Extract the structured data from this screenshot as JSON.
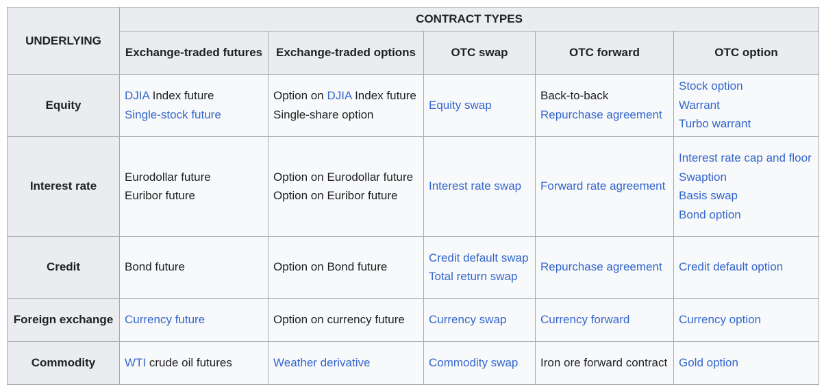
{
  "header": {
    "underlying": "UNDERLYING",
    "contract_types": "CONTRACT TYPES",
    "columns": [
      "Exchange-traded futures",
      "Exchange-traded options",
      "OTC swap",
      "OTC forward",
      "OTC option"
    ]
  },
  "rows": {
    "equity": {
      "label": "Equity",
      "futures": {
        "l1_link": "DJIA",
        "l1_text": " Index future",
        "l2_link": "Single-stock future"
      },
      "options": {
        "l1_text": "Option on ",
        "l1_link": "DJIA",
        "l1_text2": " Index future",
        "l2_text": "Single-share option"
      },
      "swap": {
        "link": "Equity swap"
      },
      "forward": {
        "l1_text": "Back-to-back",
        "l2_link": "Repurchase agreement"
      },
      "option": {
        "l1_link": "Stock option",
        "l2_link": "Warrant",
        "l3_link": "Turbo warrant"
      }
    },
    "interest_rate": {
      "label": "Interest rate",
      "futures": {
        "l1_text": "Eurodollar future",
        "l2_text": "Euribor future"
      },
      "options": {
        "l1_text": "Option on Eurodollar future",
        "l2_text": "Option on Euribor future"
      },
      "swap": {
        "link": "Interest rate swap"
      },
      "forward": {
        "link": "Forward rate agreement"
      },
      "option": {
        "l1_link": "Interest rate cap and floor",
        "l2_link": "Swaption",
        "l3_link": "Basis swap",
        "l4_link": "Bond option"
      }
    },
    "credit": {
      "label": "Credit",
      "futures": {
        "text": "Bond future"
      },
      "options": {
        "text": "Option on Bond future"
      },
      "swap": {
        "l1_link": "Credit default swap",
        "l2_link": "Total return swap"
      },
      "forward": {
        "link": "Repurchase agreement"
      },
      "option": {
        "link": "Credit default option"
      }
    },
    "foreign_exchange": {
      "label": "Foreign exchange",
      "futures": {
        "link": "Currency future"
      },
      "options": {
        "text": "Option on currency future"
      },
      "swap": {
        "link": "Currency swap"
      },
      "forward": {
        "link": "Currency forward"
      },
      "option": {
        "link": "Currency option"
      }
    },
    "commodity": {
      "label": "Commodity",
      "futures": {
        "l1_link": "WTI",
        "l1_text": " crude oil futures"
      },
      "options": {
        "link": "Weather derivative"
      },
      "swap": {
        "link": "Commodity swap"
      },
      "forward": {
        "text": "Iron ore forward contract"
      },
      "option": {
        "link": "Gold option"
      }
    }
  },
  "colors": {
    "link": "#3366cc",
    "text": "#202122",
    "header_bg": "#eaecf0",
    "cell_bg": "#f8f9fa",
    "border": "#a2a9b1"
  }
}
